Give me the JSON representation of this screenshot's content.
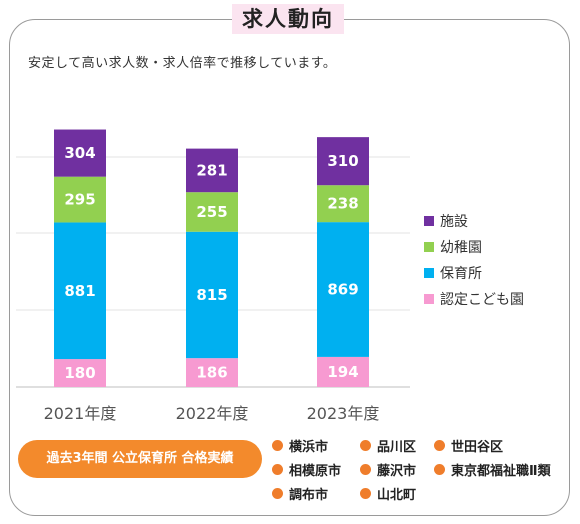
{
  "title": "求人動向",
  "subtitle": "安定して高い求人数・求人倍率で推移しています。",
  "chart_data": {
    "type": "bar",
    "stacked": true,
    "categories": [
      "2021年度",
      "2022年度",
      "2023年度"
    ],
    "series": [
      {
        "name": "認定こども園",
        "color": "#f79ad1",
        "values": [
          180,
          186,
          194
        ]
      },
      {
        "name": "保育所",
        "color": "#00b0f0",
        "values": [
          881,
          815,
          869
        ]
      },
      {
        "name": "幼稚園",
        "color": "#92d050",
        "values": [
          295,
          255,
          238
        ]
      },
      {
        "name": "施設",
        "color": "#7030a0",
        "values": [
          304,
          281,
          310
        ]
      }
    ],
    "grid": true,
    "legend_position": "right"
  },
  "legend_order": [
    "施設",
    "幼稚園",
    "保育所",
    "認定こども園"
  ],
  "badge": {
    "text": "過去3年間 公立保育所 合格実績",
    "color": "#f38a2c"
  },
  "cities": [
    "横浜市",
    "品川区",
    "世田谷区",
    "相模原市",
    "藤沢市",
    "東京都福祉職Ⅱ類",
    "調布市",
    "山北町"
  ],
  "city_dot_color": "#ef7d2b"
}
